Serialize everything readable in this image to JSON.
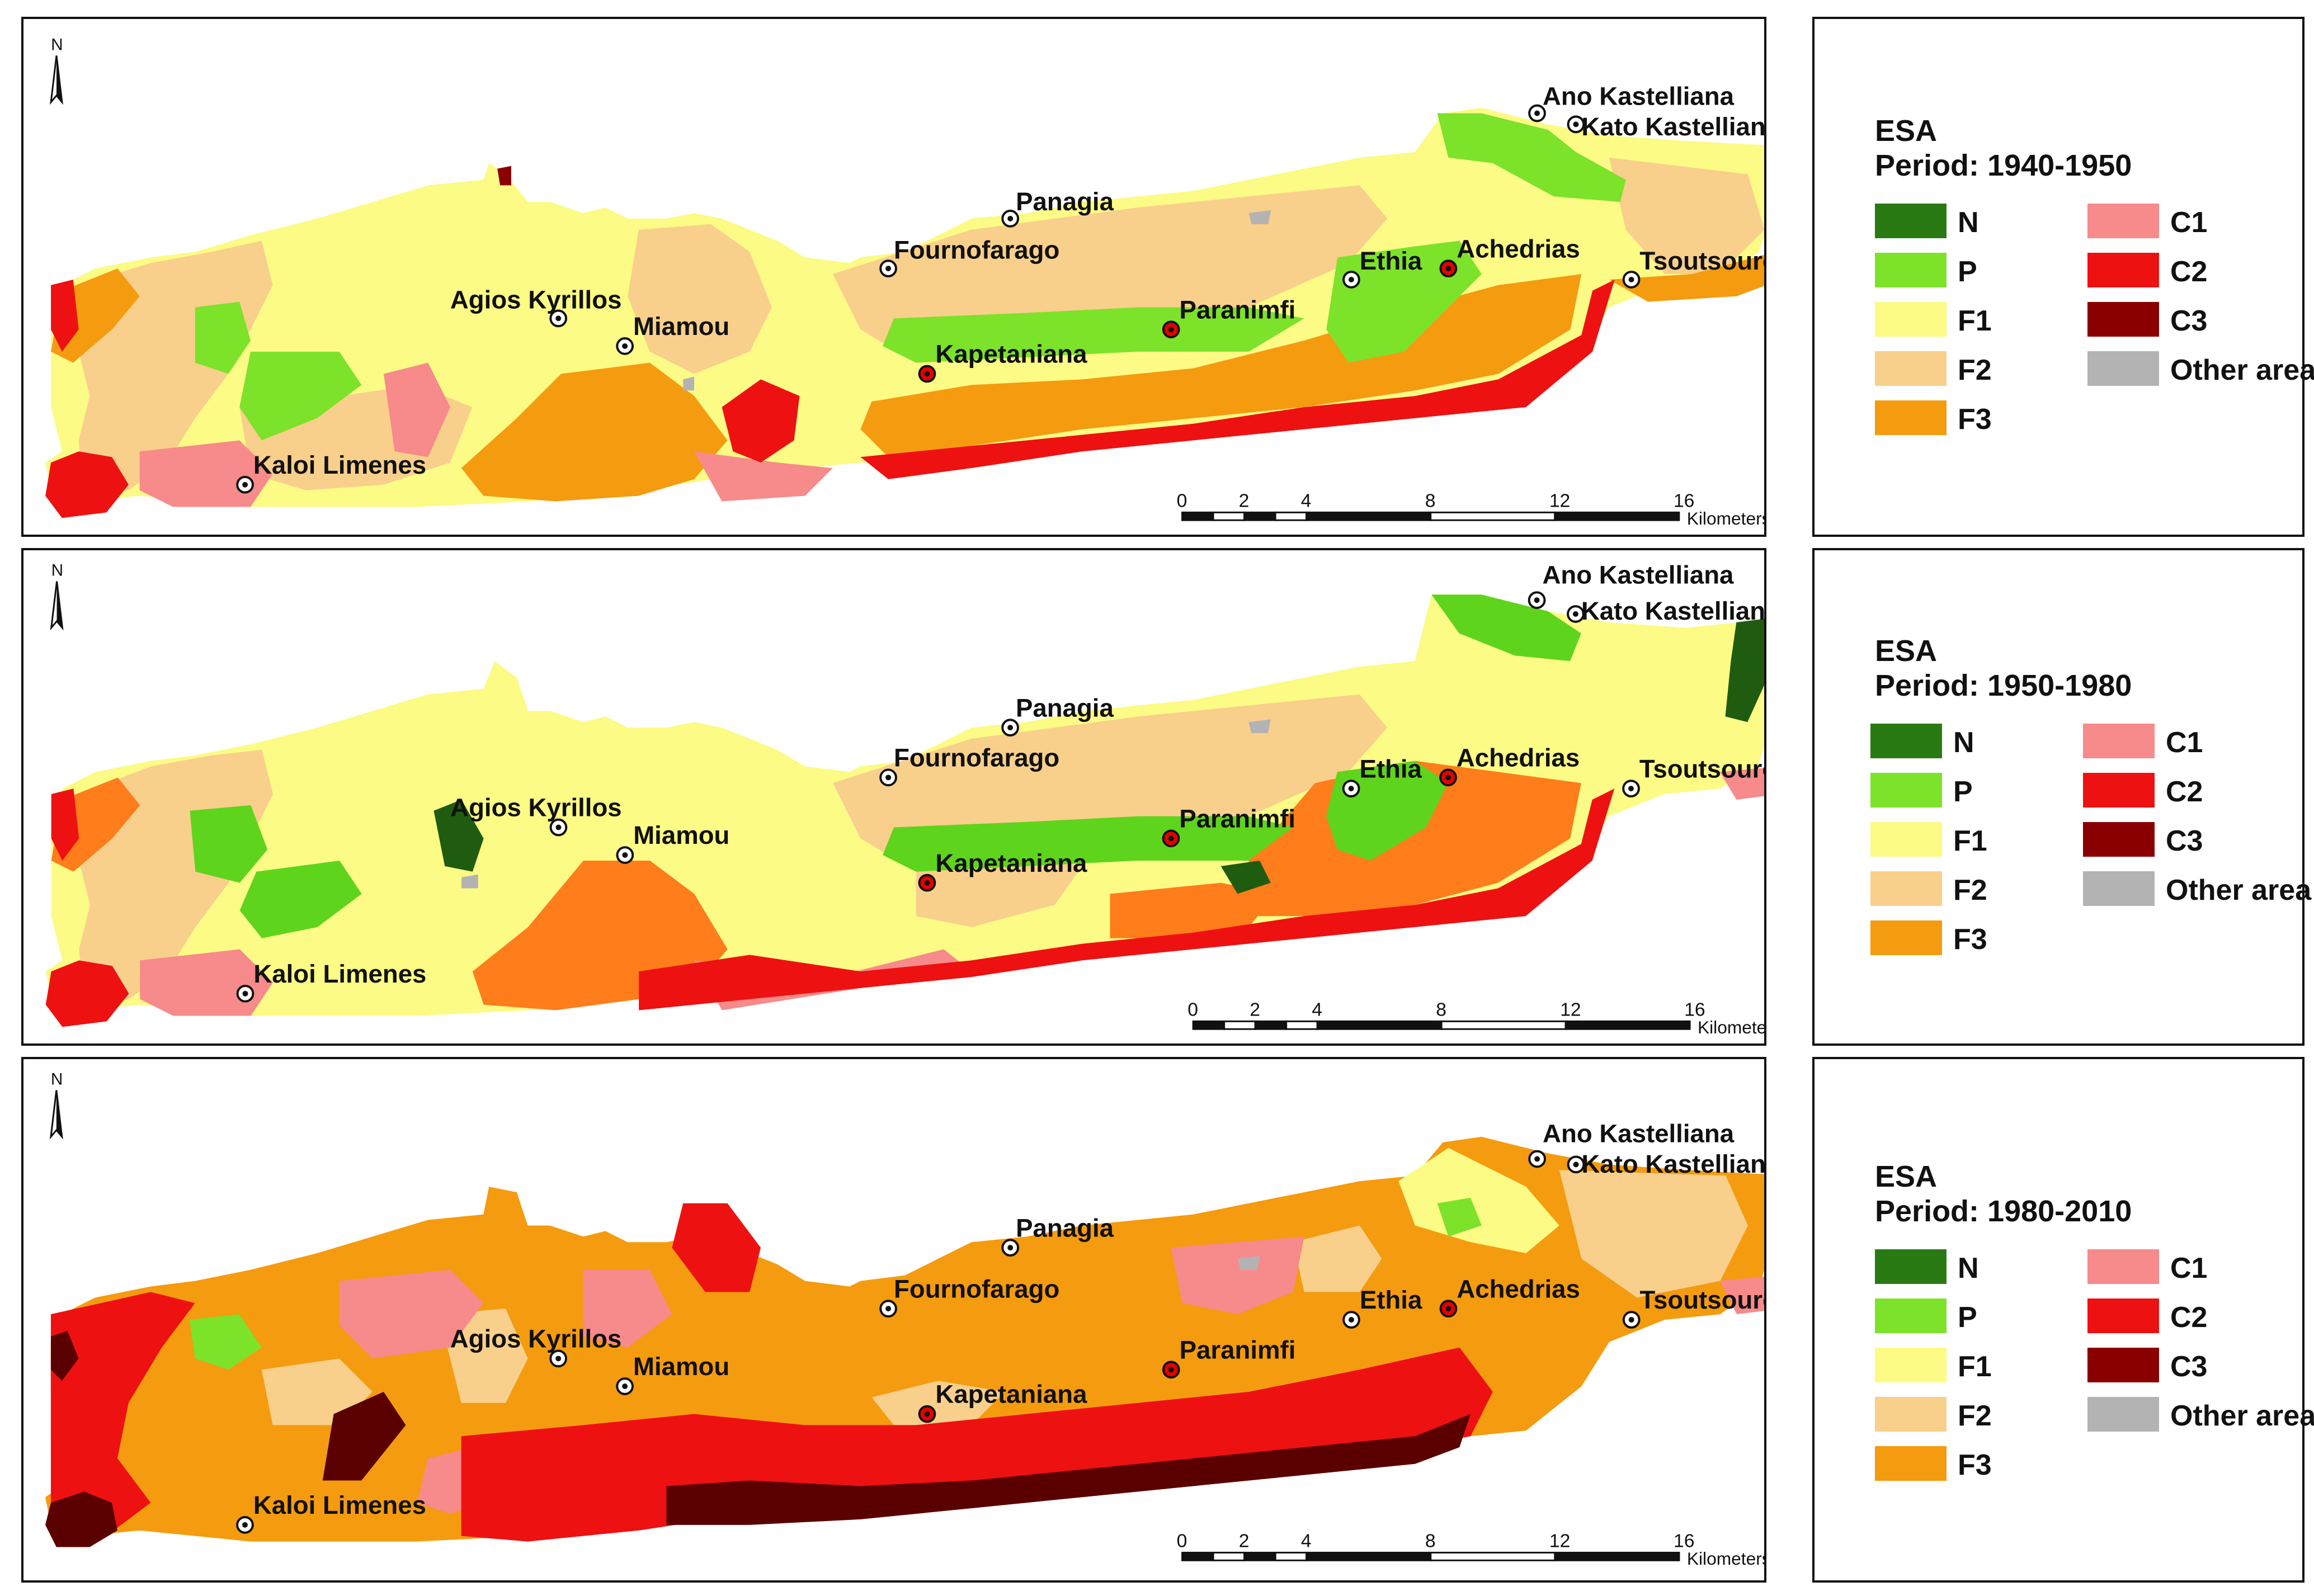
{
  "colors": {
    "N": "#2a7a14",
    "N_dark": "#1f5c0f",
    "P": "#7de22a",
    "P2": "#5fd41c",
    "F1": "#fbfb85",
    "F2": "#f9cf8c",
    "F3": "#f59b0f",
    "F3b": "#ff7d1a",
    "C1": "#f78a8a",
    "C2": "#ee1111",
    "C3": "#8a0000",
    "C3b": "#5a0000",
    "Other": "#b3b3b3"
  },
  "panels": [
    {
      "legend_title": "ESA",
      "period": "Period: 1940-1950"
    },
    {
      "legend_title": "ESA",
      "period": "Period: 1950-1980"
    },
    {
      "legend_title": "ESA",
      "period": "Period: 1980-2010"
    }
  ],
  "legend_classes": [
    "N",
    "P",
    "F1",
    "F2",
    "F3",
    "C1",
    "C2",
    "C3",
    "Other area"
  ],
  "places": [
    "Ano Kastelliana",
    "Kato Kastelliana",
    "Panagia",
    "Fournofarago",
    "Agios Kyrillos",
    "Miamou",
    "Ethia",
    "Achedrias",
    "Tsoutsouros",
    "Paranimfi",
    "Kapetaniana",
    "Kaloi Limenes"
  ],
  "scale": {
    "ticks": [
      "0",
      "2",
      "4",
      "8",
      "12",
      "16"
    ],
    "unit": "Kilometers"
  },
  "north": "N"
}
